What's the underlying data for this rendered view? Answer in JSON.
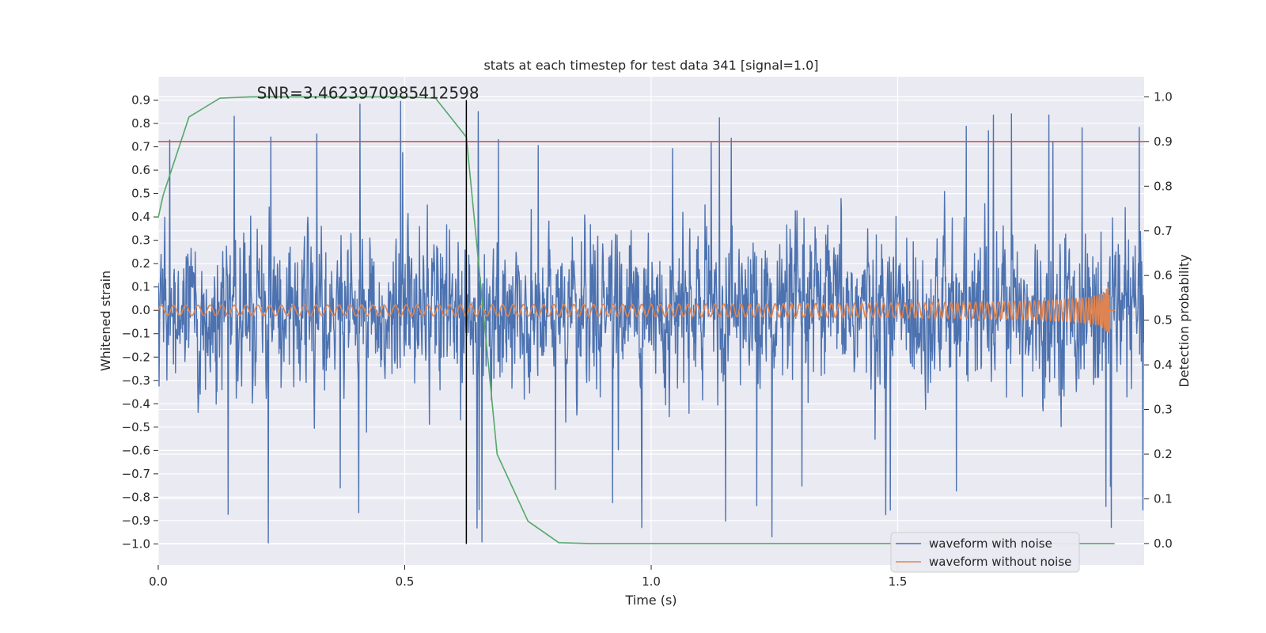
{
  "chart_data": {
    "type": "line",
    "title": "stats at each timestep for test data 341 [signal=1.0]",
    "xlabel": "Time (s)",
    "ylabel": "Whitened strain",
    "y2label": "Detection probability",
    "xlim": [
      0.0,
      2.0
    ],
    "ylim": [
      -1.09,
      1.0
    ],
    "y2lim": [
      -0.048,
      1.045
    ],
    "x_ticks": [
      0.0,
      0.5,
      1.0,
      1.5
    ],
    "x_tick_labels": [
      "0.0",
      "0.5",
      "1.0",
      "1.5"
    ],
    "y_ticks": [
      0.9,
      0.8,
      0.7,
      0.6,
      0.5,
      0.4,
      0.3,
      0.2,
      0.1,
      0.0,
      -0.1,
      -0.2,
      -0.3,
      -0.4,
      -0.5,
      -0.6,
      -0.7,
      -0.8,
      -0.9,
      -1.0
    ],
    "y_tick_labels": [
      "0.9",
      "0.8",
      "0.7",
      "0.6",
      "0.5",
      "0.4",
      "0.3",
      "0.2",
      "0.1",
      "0.0",
      "−0.1",
      "−0.2",
      "−0.3",
      "−0.4",
      "−0.5",
      "−0.6",
      "−0.7",
      "−0.8",
      "−0.9",
      "−1.0"
    ],
    "y2_ticks": [
      1.0,
      0.9,
      0.8,
      0.7,
      0.6,
      0.5,
      0.4,
      0.3,
      0.2,
      0.1,
      0.0
    ],
    "y2_tick_labels": [
      "1.0",
      "0.9",
      "0.8",
      "0.7",
      "0.6",
      "0.5",
      "0.4",
      "0.3",
      "0.2",
      "0.1",
      "0.0"
    ],
    "grid": true,
    "legend_position": "bottom-right",
    "annotation": "SNR=3.4623970985412598",
    "annotation_x": 0.2,
    "annotation_y": 0.9,
    "threshold_probability": 0.9,
    "marker_time": 0.625,
    "series": [
      {
        "name": "waveform with noise",
        "color": "#4c72b0",
        "axis": "left",
        "kind": "noise",
        "t_start": 0.0,
        "t_end": 2.0,
        "amplitude_range": [
          -1.0,
          0.9
        ]
      },
      {
        "name": "waveform without noise",
        "color": "#dd8452",
        "axis": "left",
        "kind": "chirp",
        "t_start": 0.0,
        "t_end": 1.94,
        "merger_time": 1.93,
        "amplitude_range": [
          -0.12,
          0.1
        ]
      },
      {
        "name": "detection probability",
        "color": "#55a868",
        "axis": "right",
        "x": [
          0.0,
          0.01,
          0.0625,
          0.125,
          0.1875,
          0.25,
          0.3125,
          0.375,
          0.4375,
          0.5,
          0.5625,
          0.625,
          0.6875,
          0.75,
          0.8125,
          0.875,
          0.9375,
          1.0,
          1.0625,
          1.125,
          1.1875,
          1.25,
          1.3125,
          1.375,
          1.4375,
          1.5,
          1.5625,
          1.625,
          1.6875,
          1.75,
          1.8125,
          1.875,
          1.94
        ],
        "y": [
          0.73,
          0.78,
          0.955,
          0.997,
          1.0,
          1.0,
          1.0,
          1.0,
          1.0,
          1.0,
          0.997,
          0.91,
          0.2,
          0.05,
          0.002,
          0.0,
          0.0,
          0.0,
          0.0,
          0.0,
          0.0,
          0.0,
          0.0,
          0.0,
          0.0,
          0.0,
          0.0,
          0.0,
          0.0,
          0.0,
          0.0,
          0.0,
          0.0
        ]
      }
    ],
    "colors": {
      "plot_background": "#eaeaf2",
      "grid": "#ffffff",
      "threshold": "#c44e52",
      "marker": "#000000"
    }
  }
}
